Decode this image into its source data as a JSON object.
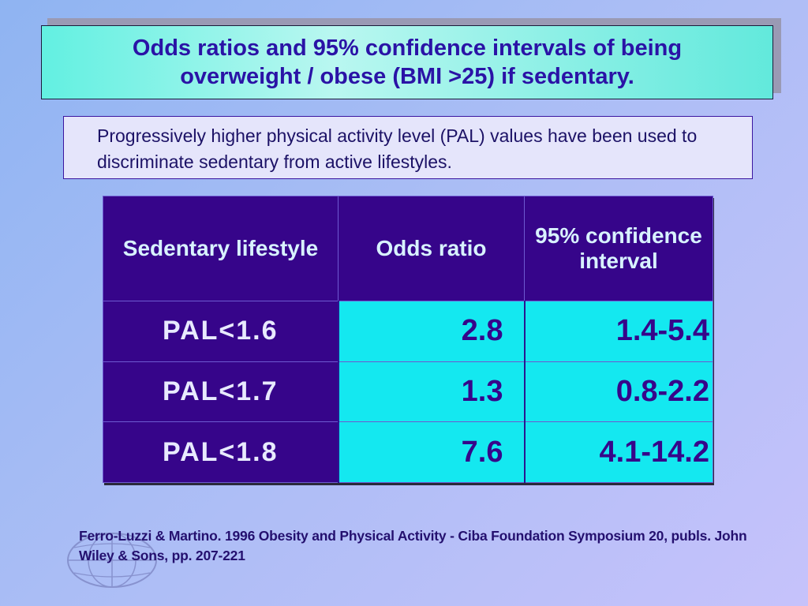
{
  "slide": {
    "title": "Odds ratios and 95% confidence intervals of being\noverweight / obese (BMI >25) if sedentary.",
    "description": "Progressively higher physical activity level (PAL) values have been used to discriminate sedentary from active lifestyles.",
    "table": {
      "headers": [
        "Sedentary lifestyle",
        "Odds ratio",
        "95% confidence interval"
      ],
      "rows": [
        {
          "label": "PAL<1.6",
          "or": "2.8",
          "ci": "1.4-5.4"
        },
        {
          "label": "PAL<1.7",
          "or": "1.3",
          "ci": "0.8-2.2"
        },
        {
          "label": "PAL<1.8",
          "or": "7.6",
          "ci": "4.1-14.2"
        }
      ]
    },
    "reference": "Ferro-Luzzi & Martino.  1996  Obesity and Physical Activity - Ciba Foundation Symposium 20, publs. John Wiley & Sons, pp. 207-221",
    "logo_icon": "globe-logo-watermark"
  }
}
